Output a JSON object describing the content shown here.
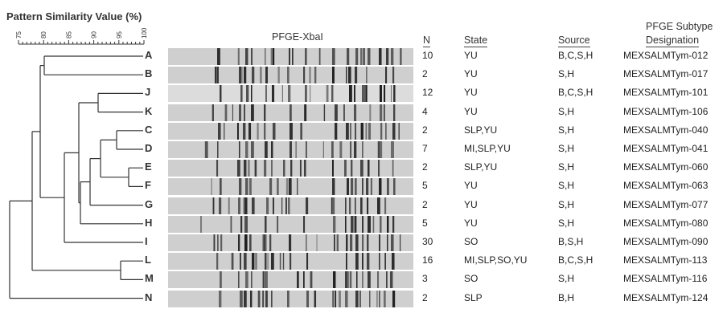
{
  "figure": {
    "title": "Pattern Similarity Value (%)",
    "scale_ticks": [
      "75",
      "80",
      "85",
      "90",
      "95",
      "100"
    ],
    "gel_header": "PFGE-XbaI",
    "headers": {
      "n": "N",
      "state": "State",
      "source": "Source",
      "designation_line1": "PFGE Subtype",
      "designation_line2": "Designation"
    },
    "rows": [
      {
        "label": "A",
        "n": "10",
        "state": "YU",
        "source": "B,C,S,H",
        "designation": "MEXSALMTym-012"
      },
      {
        "label": "B",
        "n": "2",
        "state": "YU",
        "source": "S,H",
        "designation": "MEXSALMTym-017"
      },
      {
        "label": "J",
        "n": "12",
        "state": "YU",
        "source": "B,C,S,H",
        "designation": "MEXSALMTym-101"
      },
      {
        "label": "K",
        "n": "4",
        "state": "YU",
        "source": "S,H",
        "designation": "MEXSALMTym-106"
      },
      {
        "label": "C",
        "n": "2",
        "state": "SLP,YU",
        "source": "S,H",
        "designation": "MEXSALMTym-040"
      },
      {
        "label": "D",
        "n": "7",
        "state": "MI,SLP,YU",
        "source": "S,H",
        "designation": "MEXSALMTym-041"
      },
      {
        "label": "E",
        "n": "2",
        "state": "SLP,YU",
        "source": "S,H",
        "designation": "MEXSALMTym-060"
      },
      {
        "label": "F",
        "n": "5",
        "state": "YU",
        "source": "S,H",
        "designation": "MEXSALMTym-063"
      },
      {
        "label": "G",
        "n": "2",
        "state": "YU",
        "source": "S,H",
        "designation": "MEXSALMTym-077"
      },
      {
        "label": "H",
        "n": "5",
        "state": "YU",
        "source": "S,H",
        "designation": "MEXSALMTym-080"
      },
      {
        "label": "I",
        "n": "30",
        "state": "SO",
        "source": "B,S,H",
        "designation": "MEXSALMTym-090"
      },
      {
        "label": "L",
        "n": "16",
        "state": "MI,SLP,SO,YU",
        "source": "B,C,S,H",
        "designation": "MEXSALMTym-113"
      },
      {
        "label": "M",
        "n": "3",
        "state": "SO",
        "source": "S,H",
        "designation": "MEXSALMTym-116"
      },
      {
        "label": "N",
        "n": "2",
        "state": "SLP",
        "source": "B,H",
        "designation": "MEXSALMTym-124"
      }
    ],
    "colors": {
      "band": "#1c1c1c",
      "lane": "#cfcfcf",
      "line": "#333333"
    }
  }
}
